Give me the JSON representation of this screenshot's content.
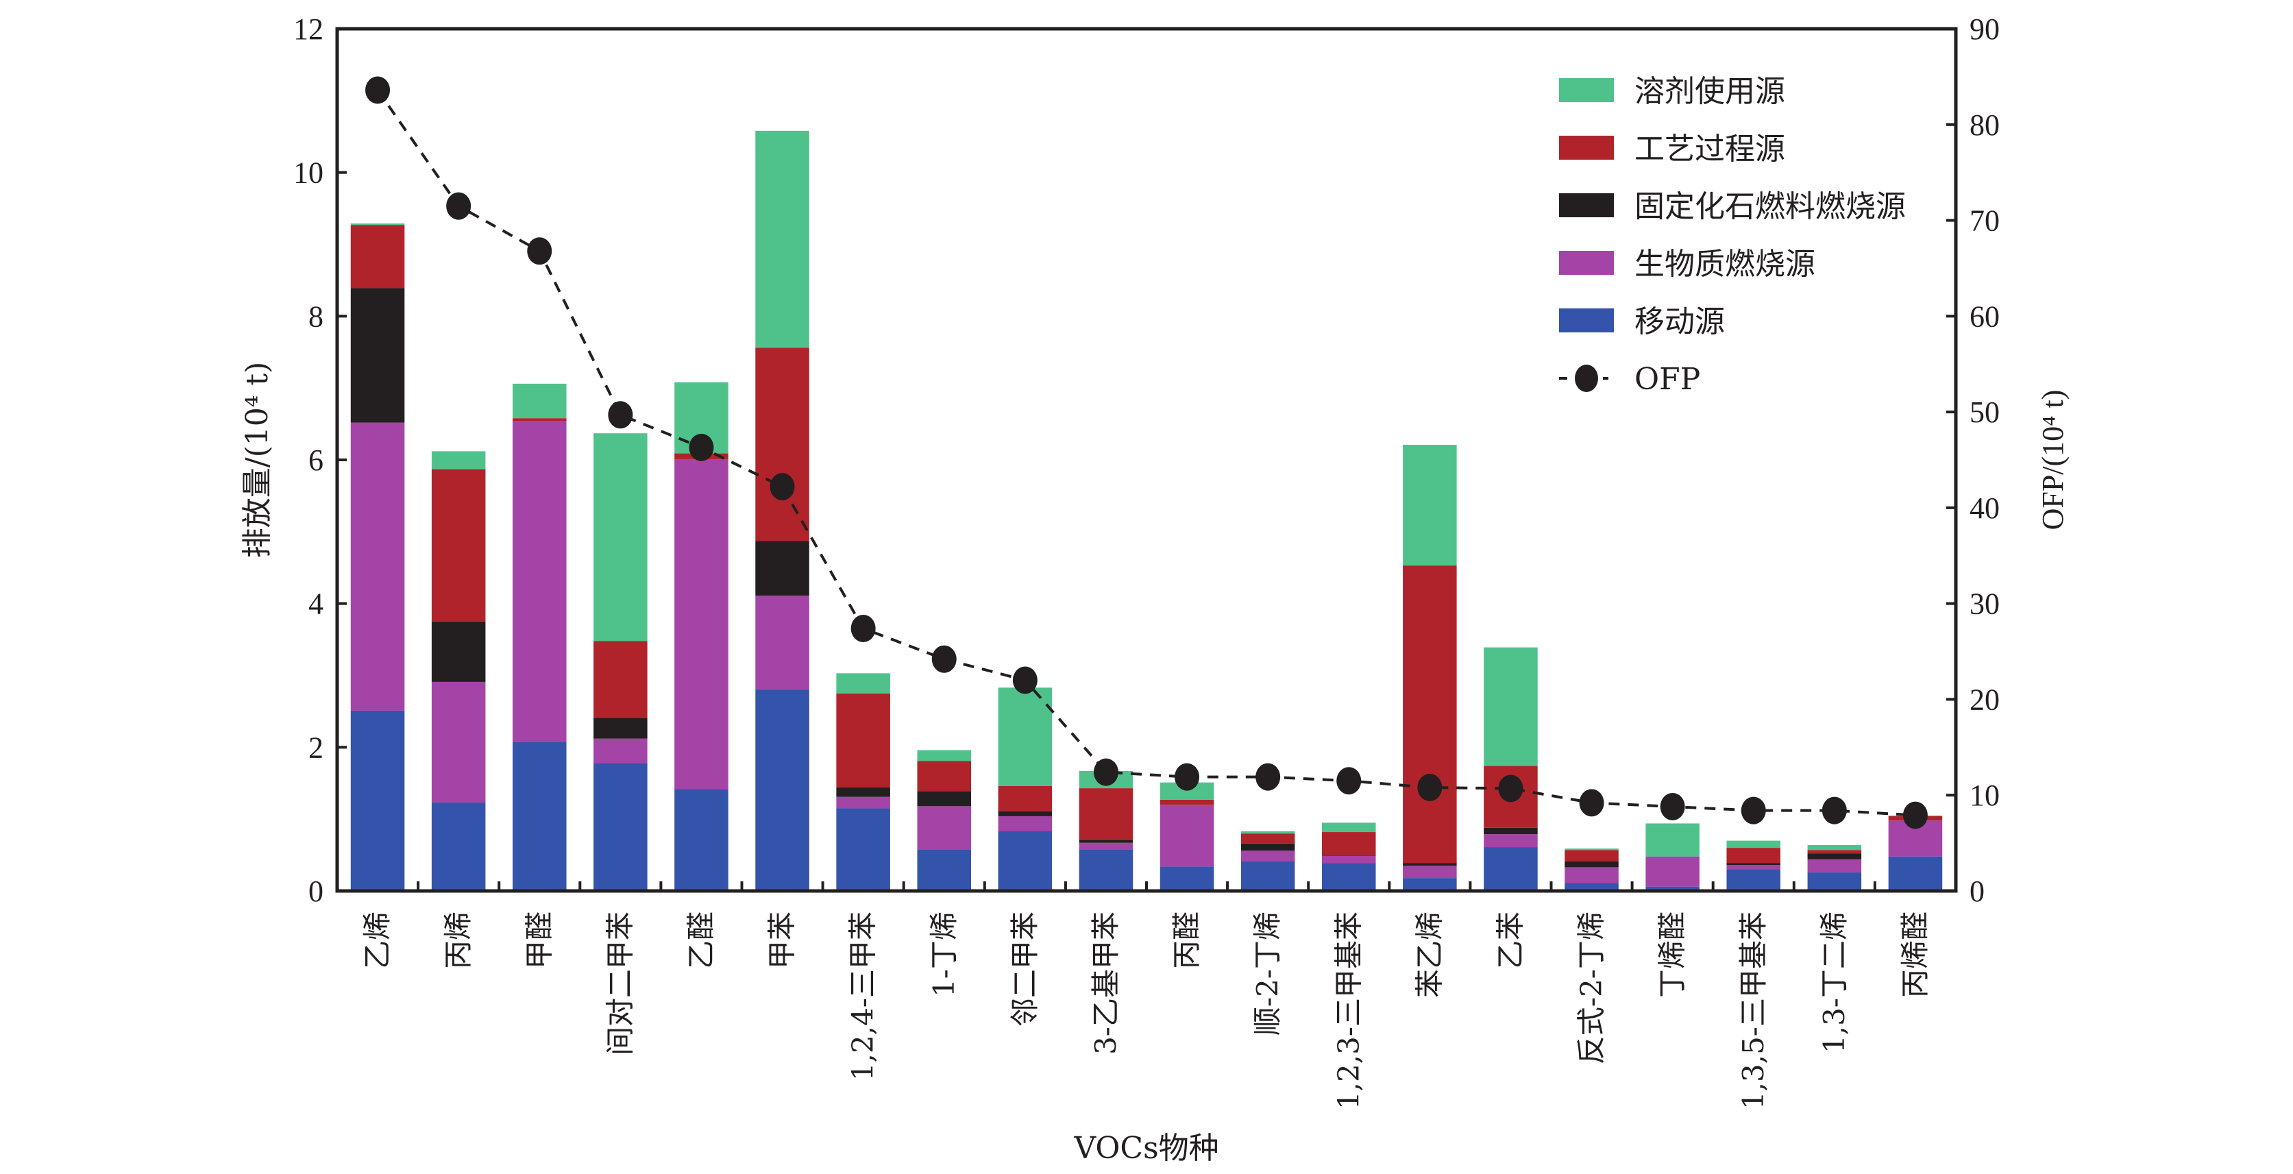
{
  "chart_data": {
    "type": "bar",
    "subtype": "stacked-bar-with-line",
    "title": "",
    "xlabel": "VOCs物种",
    "ylabel": "排放量/(10⁴ t)",
    "y2label": "OFP/(10⁴ t)",
    "ylim": [
      0,
      12
    ],
    "y2lim": [
      0,
      90
    ],
    "yticks": [
      0,
      2,
      4,
      6,
      8,
      10,
      12
    ],
    "y2ticks": [
      0,
      10,
      20,
      30,
      40,
      50,
      60,
      70,
      80,
      90
    ],
    "grid": false,
    "legend_position": "top-right",
    "categories": [
      "乙烯",
      "丙烯",
      "甲醛",
      "间对二甲苯",
      "乙醛",
      "甲苯",
      "1,2,4-三甲苯",
      "1-丁烯",
      "邻二甲苯",
      "3-乙基甲苯",
      "丙醛",
      "顺-2-丁烯",
      "1,2,3-三甲基苯",
      "苯乙烯",
      "乙苯",
      "反式-2-丁烯",
      "丁烯醛",
      "1,3,5-三甲基苯",
      "1,3-丁二烯",
      "丙烯醛"
    ],
    "series": [
      {
        "name": "移动源",
        "color": "#3453ab",
        "axis": "left",
        "values": [
          2.51,
          1.23,
          2.07,
          1.78,
          1.42,
          2.8,
          1.15,
          0.58,
          0.83,
          0.58,
          0.34,
          0.41,
          0.39,
          0.18,
          0.61,
          0.11,
          0.06,
          0.3,
          0.26,
          0.48
        ]
      },
      {
        "name": "生物质燃烧源",
        "color": "#a444a7",
        "axis": "left",
        "values": [
          4.01,
          1.68,
          4.47,
          0.34,
          4.59,
          1.31,
          0.16,
          0.6,
          0.21,
          0.09,
          0.86,
          0.15,
          0.1,
          0.17,
          0.18,
          0.22,
          0.42,
          0.06,
          0.18,
          0.5
        ]
      },
      {
        "name": "固定化石燃料燃烧源",
        "color": "#231f20",
        "axis": "left",
        "values": [
          1.87,
          0.84,
          0.0,
          0.29,
          0.0,
          0.76,
          0.13,
          0.21,
          0.07,
          0.04,
          0.0,
          0.1,
          0.01,
          0.04,
          0.09,
          0.08,
          0.0,
          0.03,
          0.08,
          0.0
        ]
      },
      {
        "name": "工艺过程源",
        "color": "#b0232a",
        "axis": "left",
        "values": [
          0.88,
          2.12,
          0.04,
          1.07,
          0.08,
          2.69,
          1.31,
          0.42,
          0.35,
          0.72,
          0.07,
          0.14,
          0.32,
          4.14,
          0.86,
          0.16,
          0.0,
          0.21,
          0.05,
          0.06
        ]
      },
      {
        "name": "溶剂使用源",
        "color": "#4fc28b",
        "axis": "left",
        "values": [
          0.02,
          0.25,
          0.48,
          2.89,
          0.99,
          3.02,
          0.28,
          0.15,
          1.37,
          0.24,
          0.24,
          0.03,
          0.13,
          1.68,
          1.65,
          0.02,
          0.46,
          0.1,
          0.07,
          0.01
        ]
      }
    ],
    "line": {
      "name": "OFP",
      "axis": "right",
      "style": "dashed",
      "marker": "circle",
      "color": "#231f20",
      "values": [
        83.6,
        71.5,
        66.8,
        49.7,
        46.3,
        42.2,
        27.4,
        24.2,
        22.0,
        12.4,
        11.9,
        11.9,
        11.5,
        10.8,
        10.7,
        9.2,
        8.8,
        8.4,
        8.4,
        7.9
      ]
    },
    "legend": [
      "溶剂使用源",
      "工艺过程源",
      "固定化石燃料燃烧源",
      "生物质燃烧源",
      "移动源",
      "OFP"
    ]
  }
}
